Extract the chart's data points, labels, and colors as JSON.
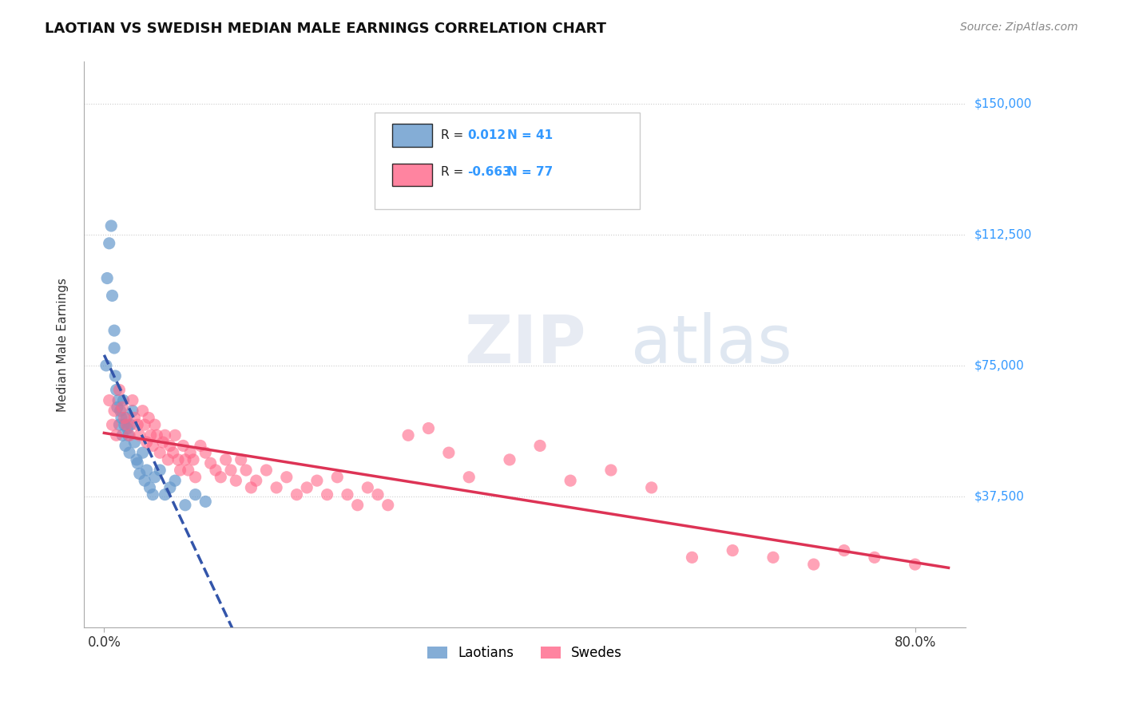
{
  "title": "LAOTIAN VS SWEDISH MEDIAN MALE EARNINGS CORRELATION CHART",
  "source_text": "Source: ZipAtlas.com",
  "xlabel": "",
  "ylabel": "Median Male Earnings",
  "yticks": [
    0,
    37500,
    75000,
    112500,
    150000
  ],
  "ytick_labels": [
    "",
    "$37,500",
    "$75,000",
    "$112,500",
    "$150,000"
  ],
  "xtick_labels": [
    "0.0%",
    "80.0%"
  ],
  "xlim": [
    -0.02,
    0.85
  ],
  "ylim": [
    0,
    162000
  ],
  "r_laotian": 0.012,
  "n_laotian": 41,
  "r_swedish": -0.663,
  "n_swedish": 77,
  "blue_color": "#6699CC",
  "pink_color": "#FF6688",
  "blue_line_color": "#3355AA",
  "pink_line_color": "#DD3355",
  "watermark": "ZIPatlas",
  "legend_labels": [
    "Laotians",
    "Swedes"
  ],
  "laotian_x": [
    0.002,
    0.003,
    0.005,
    0.007,
    0.008,
    0.01,
    0.01,
    0.011,
    0.012,
    0.013,
    0.014,
    0.015,
    0.016,
    0.017,
    0.018,
    0.019,
    0.02,
    0.021,
    0.022,
    0.023,
    0.024,
    0.025,
    0.026,
    0.028,
    0.03,
    0.032,
    0.033,
    0.035,
    0.038,
    0.04,
    0.042,
    0.045,
    0.048,
    0.05,
    0.055,
    0.06,
    0.065,
    0.07,
    0.08,
    0.09,
    0.1
  ],
  "laotian_y": [
    75000,
    100000,
    110000,
    115000,
    95000,
    85000,
    80000,
    72000,
    68000,
    63000,
    65000,
    58000,
    62000,
    60000,
    55000,
    65000,
    58000,
    52000,
    60000,
    57000,
    55000,
    50000,
    58000,
    62000,
    53000,
    48000,
    47000,
    44000,
    50000,
    42000,
    45000,
    40000,
    38000,
    43000,
    45000,
    38000,
    40000,
    42000,
    35000,
    38000,
    36000
  ],
  "swedish_x": [
    0.005,
    0.008,
    0.01,
    0.012,
    0.015,
    0.018,
    0.02,
    0.022,
    0.025,
    0.028,
    0.03,
    0.033,
    0.035,
    0.038,
    0.04,
    0.042,
    0.044,
    0.046,
    0.048,
    0.05,
    0.052,
    0.055,
    0.058,
    0.06,
    0.063,
    0.065,
    0.068,
    0.07,
    0.073,
    0.075,
    0.078,
    0.08,
    0.083,
    0.085,
    0.088,
    0.09,
    0.095,
    0.1,
    0.105,
    0.11,
    0.115,
    0.12,
    0.125,
    0.13,
    0.135,
    0.14,
    0.145,
    0.15,
    0.16,
    0.17,
    0.18,
    0.19,
    0.2,
    0.21,
    0.22,
    0.23,
    0.24,
    0.25,
    0.26,
    0.27,
    0.28,
    0.3,
    0.32,
    0.34,
    0.36,
    0.4,
    0.43,
    0.46,
    0.5,
    0.54,
    0.58,
    0.62,
    0.66,
    0.7,
    0.73,
    0.76,
    0.8
  ],
  "swedish_y": [
    65000,
    58000,
    62000,
    55000,
    68000,
    63000,
    60000,
    58000,
    55000,
    65000,
    60000,
    58000,
    55000,
    62000,
    58000,
    53000,
    60000,
    55000,
    52000,
    58000,
    55000,
    50000,
    53000,
    55000,
    48000,
    52000,
    50000,
    55000,
    48000,
    45000,
    52000,
    48000,
    45000,
    50000,
    48000,
    43000,
    52000,
    50000,
    47000,
    45000,
    43000,
    48000,
    45000,
    42000,
    48000,
    45000,
    40000,
    42000,
    45000,
    40000,
    43000,
    38000,
    40000,
    42000,
    38000,
    43000,
    38000,
    35000,
    40000,
    38000,
    35000,
    55000,
    57000,
    50000,
    43000,
    48000,
    52000,
    42000,
    45000,
    40000,
    20000,
    22000,
    20000,
    18000,
    22000,
    20000,
    18000
  ]
}
